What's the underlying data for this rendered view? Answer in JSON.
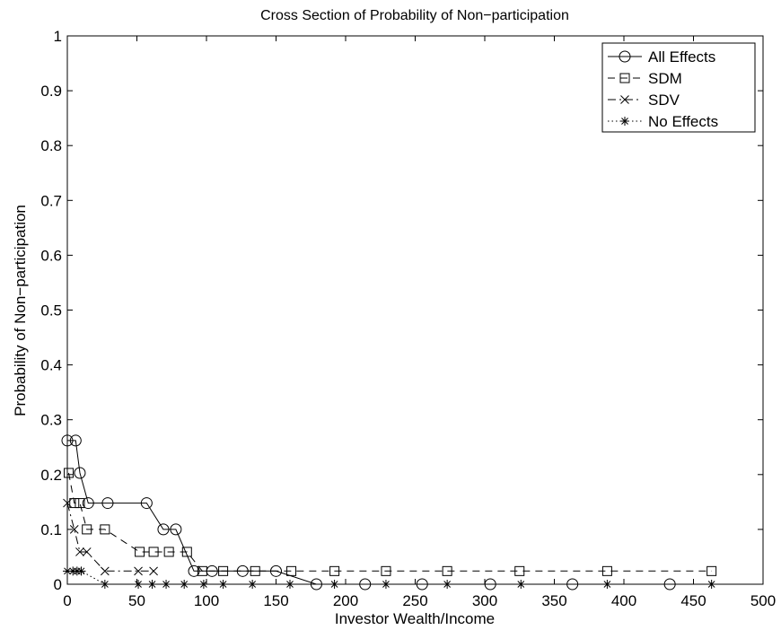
{
  "chart_data": {
    "type": "line",
    "title": "Cross Section of Probability of Non−participation",
    "xlabel": "Investor Wealth/Income",
    "ylabel": "Probability of Non−participation",
    "xlim": [
      0,
      500
    ],
    "ylim": [
      0,
      1
    ],
    "xticks": [
      0,
      50,
      100,
      150,
      200,
      250,
      300,
      350,
      400,
      450,
      500
    ],
    "xtick_labels": [
      "0",
      "50",
      "100",
      "150",
      "200",
      "250",
      "300",
      "350",
      "400",
      "450",
      "500"
    ],
    "yticks": [
      0,
      0.1,
      0.2,
      0.3,
      0.4,
      0.5,
      0.6,
      0.7,
      0.8,
      0.9,
      1
    ],
    "ytick_labels": [
      "0",
      "0.1",
      "0.2",
      "0.3",
      "0.4",
      "0.5",
      "0.6",
      "0.7",
      "0.8",
      "0.9",
      "1"
    ],
    "grid": false,
    "legend_position": "top-right",
    "series": [
      {
        "name": "All Effects",
        "line_style": "solid",
        "marker": "circle",
        "x": [
          0,
          6,
          9,
          15,
          29,
          57,
          69,
          78,
          91,
          104,
          126,
          150,
          179,
          214,
          255,
          304,
          363,
          433
        ],
        "y": [
          0.262,
          0.262,
          0.203,
          0.148,
          0.148,
          0.148,
          0.1,
          0.1,
          0.024,
          0.024,
          0.024,
          0.024,
          0,
          0,
          0,
          0,
          0,
          0
        ]
      },
      {
        "name": "SDM",
        "line_style": "dash",
        "marker": "square",
        "x": [
          1,
          5,
          9,
          14,
          27,
          52,
          62,
          73,
          86,
          97,
          112,
          135,
          161,
          192,
          229,
          273,
          325,
          388,
          463
        ],
        "y": [
          0.203,
          0.148,
          0.148,
          0.1,
          0.1,
          0.059,
          0.059,
          0.059,
          0.059,
          0.024,
          0.024,
          0.024,
          0.024,
          0.024,
          0.024,
          0.024,
          0.024,
          0.024,
          0.024
        ]
      },
      {
        "name": "SDV",
        "line_style": "dashdot",
        "marker": "x",
        "x": [
          0,
          5,
          9,
          14,
          27,
          51,
          62
        ],
        "y": [
          0.148,
          0.1,
          0.059,
          0.059,
          0.024,
          0.024,
          0.024
        ]
      },
      {
        "name": "No Effects",
        "line_style": "dotted",
        "marker": "asterisk",
        "x": [
          0,
          4,
          7,
          10,
          27,
          51,
          61,
          71,
          84,
          98,
          112,
          133,
          160,
          192,
          229,
          273,
          326,
          388,
          463
        ],
        "y": [
          0.024,
          0.024,
          0.024,
          0.024,
          0,
          0,
          0,
          0,
          0,
          0,
          0,
          0,
          0,
          0,
          0,
          0,
          0,
          0,
          0
        ]
      }
    ]
  }
}
